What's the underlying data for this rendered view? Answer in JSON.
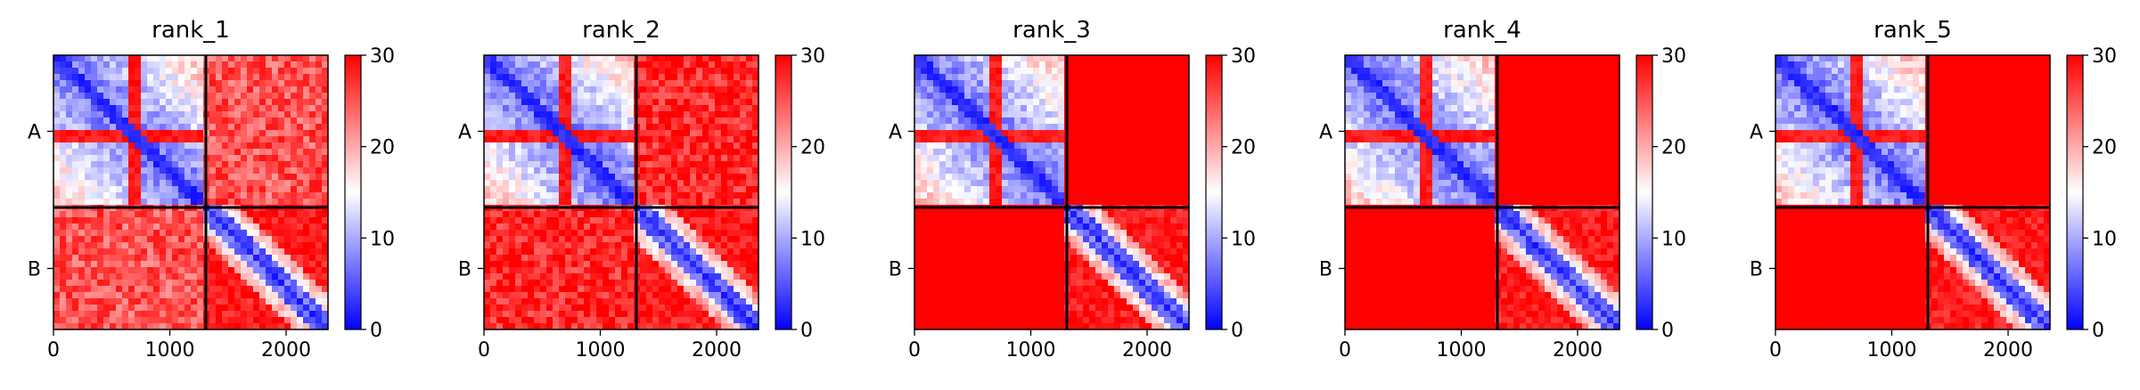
{
  "chart_data": [
    {
      "type": "heatmap",
      "title": "rank_1",
      "xlabel": "",
      "ylabel": "",
      "xlim": [
        0,
        2360
      ],
      "x_ticks": [
        "0",
        "1000",
        "2000"
      ],
      "y_categories": [
        "A",
        "B"
      ],
      "chain_boundary": 1310,
      "colorbar": {
        "vmin": 0,
        "vmax": 30,
        "ticks": [
          "0",
          "10",
          "20",
          "30"
        ],
        "colormap": "bwr"
      },
      "offdiag_level": 25,
      "self_contact_level": "low"
    },
    {
      "type": "heatmap",
      "title": "rank_2",
      "xlabel": "",
      "ylabel": "",
      "xlim": [
        0,
        2360
      ],
      "x_ticks": [
        "0",
        "1000",
        "2000"
      ],
      "y_categories": [
        "A",
        "B"
      ],
      "chain_boundary": 1310,
      "colorbar": {
        "vmin": 0,
        "vmax": 30,
        "ticks": [
          "0",
          "10",
          "20",
          "30"
        ],
        "colormap": "bwr"
      },
      "offdiag_level": 28,
      "self_contact_level": "low"
    },
    {
      "type": "heatmap",
      "title": "rank_3",
      "xlabel": "",
      "ylabel": "",
      "xlim": [
        0,
        2360
      ],
      "x_ticks": [
        "0",
        "1000",
        "2000"
      ],
      "y_categories": [
        "A",
        "B"
      ],
      "chain_boundary": 1310,
      "colorbar": {
        "vmin": 0,
        "vmax": 30,
        "ticks": [
          "0",
          "10",
          "20",
          "30"
        ],
        "colormap": "bwr"
      },
      "offdiag_level": 30,
      "self_contact_level": "low"
    },
    {
      "type": "heatmap",
      "title": "rank_4",
      "xlabel": "",
      "ylabel": "",
      "xlim": [
        0,
        2360
      ],
      "x_ticks": [
        "0",
        "1000",
        "2000"
      ],
      "y_categories": [
        "A",
        "B"
      ],
      "chain_boundary": 1310,
      "colorbar": {
        "vmin": 0,
        "vmax": 30,
        "ticks": [
          "0",
          "10",
          "20",
          "30"
        ],
        "colormap": "bwr"
      },
      "offdiag_level": 30,
      "self_contact_level": "low"
    },
    {
      "type": "heatmap",
      "title": "rank_5",
      "xlabel": "",
      "ylabel": "",
      "xlim": [
        0,
        2360
      ],
      "x_ticks": [
        "0",
        "1000",
        "2000"
      ],
      "y_categories": [
        "A",
        "B"
      ],
      "chain_boundary": 1310,
      "colorbar": {
        "vmin": 0,
        "vmax": 30,
        "ticks": [
          "0",
          "10",
          "20",
          "30"
        ],
        "colormap": "bwr"
      },
      "offdiag_level": 30,
      "self_contact_level": "low"
    }
  ]
}
